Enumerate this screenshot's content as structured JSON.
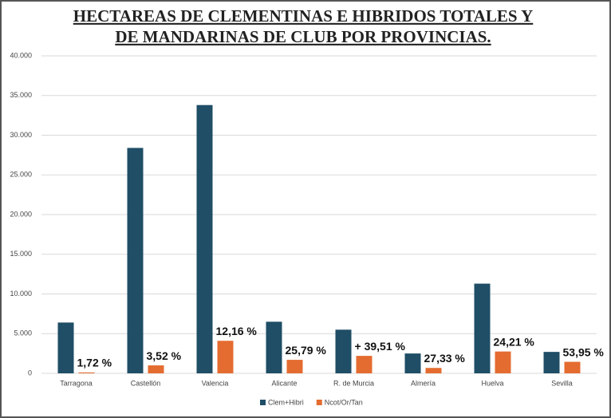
{
  "chart_data": {
    "type": "bar",
    "title_lines": [
      "HECTAREAS DE CLEMENTINAS E HIBRIDOS TOTALES Y",
      "DE MANDARINAS DE CLUB POR PROVINCIAS."
    ],
    "categories": [
      "Tarragona",
      "Castellón",
      "Valencia",
      "Alicante",
      "R. de Murcia",
      "Almería",
      "Huelva",
      "Sevilla"
    ],
    "series": [
      {
        "name": "Clem+Hibri",
        "color": "#1f4e66",
        "values": [
          6400,
          28400,
          33800,
          6500,
          5500,
          2500,
          11300,
          2700
        ]
      },
      {
        "name": "Ncot/Or/Tan",
        "color": "#e46c30",
        "values": [
          110,
          1000,
          4100,
          1700,
          2200,
          680,
          2750,
          1450
        ]
      }
    ],
    "annotations": [
      "1,72 %",
      "3,52 %",
      "12,16 %",
      "25,79 %",
      "+ 39,51 %",
      "27,33 %",
      "24,21 %",
      "53,95 %"
    ],
    "ylim": [
      0,
      40000
    ],
    "yticks": [
      {
        "value": 0,
        "label": "0"
      },
      {
        "value": 5000,
        "label": "5.000"
      },
      {
        "value": 10000,
        "label": "10.000"
      },
      {
        "value": 15000,
        "label": "15.000"
      },
      {
        "value": 20000,
        "label": "20.000"
      },
      {
        "value": 25000,
        "label": "25.000"
      },
      {
        "value": 30000,
        "label": "30.000"
      },
      {
        "value": 35000,
        "label": "35.000"
      },
      {
        "value": 40000,
        "label": "40.000"
      }
    ],
    "grid": true,
    "legend": "bottom"
  }
}
